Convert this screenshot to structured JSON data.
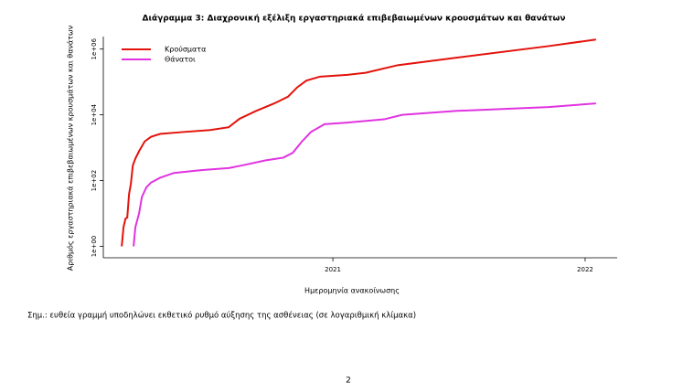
{
  "chart_data": {
    "type": "line",
    "title": "Διάγραμμα 3: Διαχρονική εξέλιξη εργαστηριακά επιβεβαιωμένων κρουσμάτων και θανάτων",
    "x_label": "Ημερομηνία ανακοίνωσης",
    "y_label": "Αριθμός εργαστηριακά επιβεβαιωμένων κρουσμάτων και θανάτων",
    "log_y": true,
    "legend": "top-left",
    "xlim": [
      2020.09,
      2022.127
    ],
    "xticks": [
      2021,
      2022
    ],
    "ylim": [
      0.45,
      2400000
    ],
    "yticks": [
      {
        "value": 1,
        "label": "1e+00"
      },
      {
        "value": 100,
        "label": "1e+02"
      },
      {
        "value": 10000,
        "label": "1e+04"
      },
      {
        "value": 1000000,
        "label": "1e+06"
      }
    ],
    "series": [
      {
        "name": "Κρούσματα",
        "color": "#e3120b",
        "x": [
          2020.163,
          2020.17,
          2020.178,
          2020.185,
          2020.192,
          2020.199,
          2020.207,
          2020.217,
          2020.232,
          2020.254,
          2020.279,
          2020.315,
          2020.406,
          2020.514,
          2020.587,
          2020.63,
          2020.696,
          2020.768,
          2020.822,
          2020.859,
          2020.895,
          2020.949,
          2021.058,
          2021.13,
          2021.257,
          2021.493,
          2021.855,
          2022.043
        ],
        "values": [
          1,
          3.8,
          7,
          7.5,
          39,
          77,
          290,
          466,
          790,
          1550,
          2150,
          2630,
          3000,
          3450,
          4200,
          7600,
          13200,
          22300,
          35600,
          69000,
          110000,
          145000,
          165000,
          190000,
          323000,
          550000,
          1230000,
          1950000
        ]
      },
      {
        "name": "Θάνατοι",
        "color": "#e033e0",
        "x": [
          2020.21,
          2020.217,
          2020.232,
          2020.243,
          2020.261,
          2020.279,
          2020.315,
          2020.37,
          2020.478,
          2020.587,
          2020.641,
          2020.732,
          2020.804,
          2020.841,
          2020.877,
          2020.913,
          2020.967,
          2021.058,
          2021.203,
          2021.275,
          2021.493,
          2021.855,
          2022.043
        ],
        "values": [
          1,
          3.8,
          10.3,
          32,
          63,
          87,
          122,
          171,
          208,
          240,
          290,
          410,
          500,
          700,
          1540,
          3000,
          5200,
          5800,
          7300,
          10000,
          13200,
          17200,
          22300
        ]
      }
    ]
  },
  "note": "Σημ.: ευθεία γραμμή υποδηλώνει εκθετικό ρυθμό αύξησης της ασθένειας (σε λογαριθμική κλίμακα)",
  "page_number": "2"
}
